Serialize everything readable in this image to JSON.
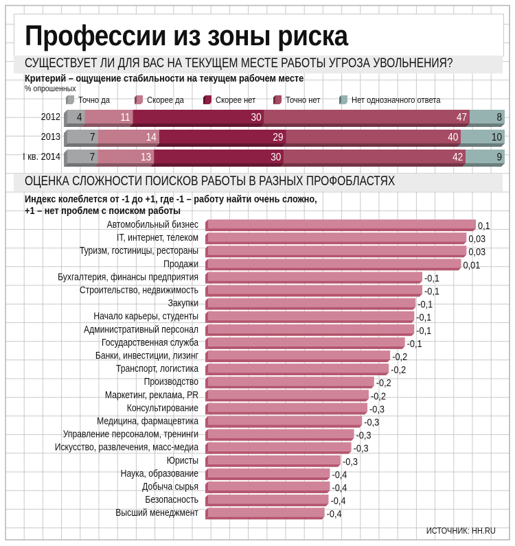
{
  "title": "Профессии из зоны риска",
  "source": "ИСТОЧНИК: HH.RU",
  "chart_data": [
    {
      "type": "bar",
      "orientation": "horizontal-stacked",
      "title": "СУЩЕСТВУЕТ ЛИ ДЛЯ ВАС НА ТЕКУЩЕМ МЕСТЕ РАБОТЫ УГРОЗА УВОЛЬНЕНИЯ?",
      "subtitle": "Критерий – ощущение стабильности на текущем рабочем месте",
      "unit": "% опрошенных",
      "categories": [
        "2012",
        "2013",
        "I кв. 2014"
      ],
      "legend_position": "top",
      "series": [
        {
          "name": "Точно да",
          "color": "#a3a5a7",
          "values": [
            4,
            7,
            7
          ]
        },
        {
          "name": "Скорее да",
          "color": "#c27b8c",
          "values": [
            11,
            14,
            13
          ]
        },
        {
          "name": "Скорее нет",
          "color": "#8e1f44",
          "values": [
            30,
            29,
            30
          ]
        },
        {
          "name": "Точно нет",
          "color": "#a54b63",
          "values": [
            47,
            40,
            42
          ]
        },
        {
          "name": "Нет однозначного ответа",
          "color": "#97b3b1",
          "values": [
            8,
            10,
            9
          ]
        }
      ],
      "xlim": [
        0,
        100
      ]
    },
    {
      "type": "bar",
      "orientation": "horizontal",
      "title": "ОЦЕНКА СЛОЖНОСТИ ПОИСКОВ РАБОТЫ В РАЗНЫХ ПРОФОБЛАСТЯХ",
      "subtitle_lines": [
        "Индекс колеблется от -1 до +1, где -1 – работу найти очень сложно,",
        "+1 – нет проблем с поиском работы"
      ],
      "bar_color": "#d0849a",
      "categories": [
        "Автомобильный бизнес",
        "IT, интернет, телеком",
        "Туризм, гостиницы, рестораны",
        "Продажи",
        "Бухгалтерия, финансы предприятия",
        "Строительство, недвижимость",
        "Закупки",
        "Начало карьеры, студенты",
        "Административный персонал",
        "Государственная служба",
        "Банки, инвестиции, лизинг",
        "Транспорт, логистика",
        "Производство",
        "Маркетинг, реклама, PR",
        "Консультирование",
        "Медицина, фармацевтика",
        "Управление персоналом, тренинги",
        "Искусство, развлечения, масс-медиа",
        "Юристы",
        "Наука, образование",
        "Добыча сырья",
        "Безопасность",
        "Высший менеджмент"
      ],
      "values": [
        0.1,
        0.03,
        0.03,
        0.01,
        -0.1,
        -0.1,
        -0.1,
        -0.1,
        -0.1,
        -0.1,
        -0.2,
        -0.2,
        -0.2,
        -0.2,
        -0.3,
        -0.3,
        -0.3,
        -0.3,
        -0.3,
        -0.4,
        -0.4,
        -0.4,
        -0.4
      ],
      "labels": [
        "0,1",
        "0,03",
        "0,03",
        "0,01",
        "-0,1",
        "-0,1",
        "-0,1",
        "-0,1",
        "-0,1",
        "-0,1",
        "-0,2",
        "-0,2",
        "-0,2",
        "-0,2",
        "-0,3",
        "-0,3",
        "-0,3",
        "-0,3",
        "-0,3",
        "-0,4",
        "-0,4",
        "-0,4",
        "-0,4"
      ],
      "relative_lengths": [
        1.0,
        0.965,
        0.965,
        0.945,
        0.8,
        0.8,
        0.775,
        0.77,
        0.77,
        0.735,
        0.68,
        0.675,
        0.62,
        0.6,
        0.595,
        0.575,
        0.545,
        0.535,
        0.495,
        0.455,
        0.455,
        0.45,
        0.435
      ],
      "xlim": [
        -1,
        1
      ],
      "grid": true
    }
  ]
}
